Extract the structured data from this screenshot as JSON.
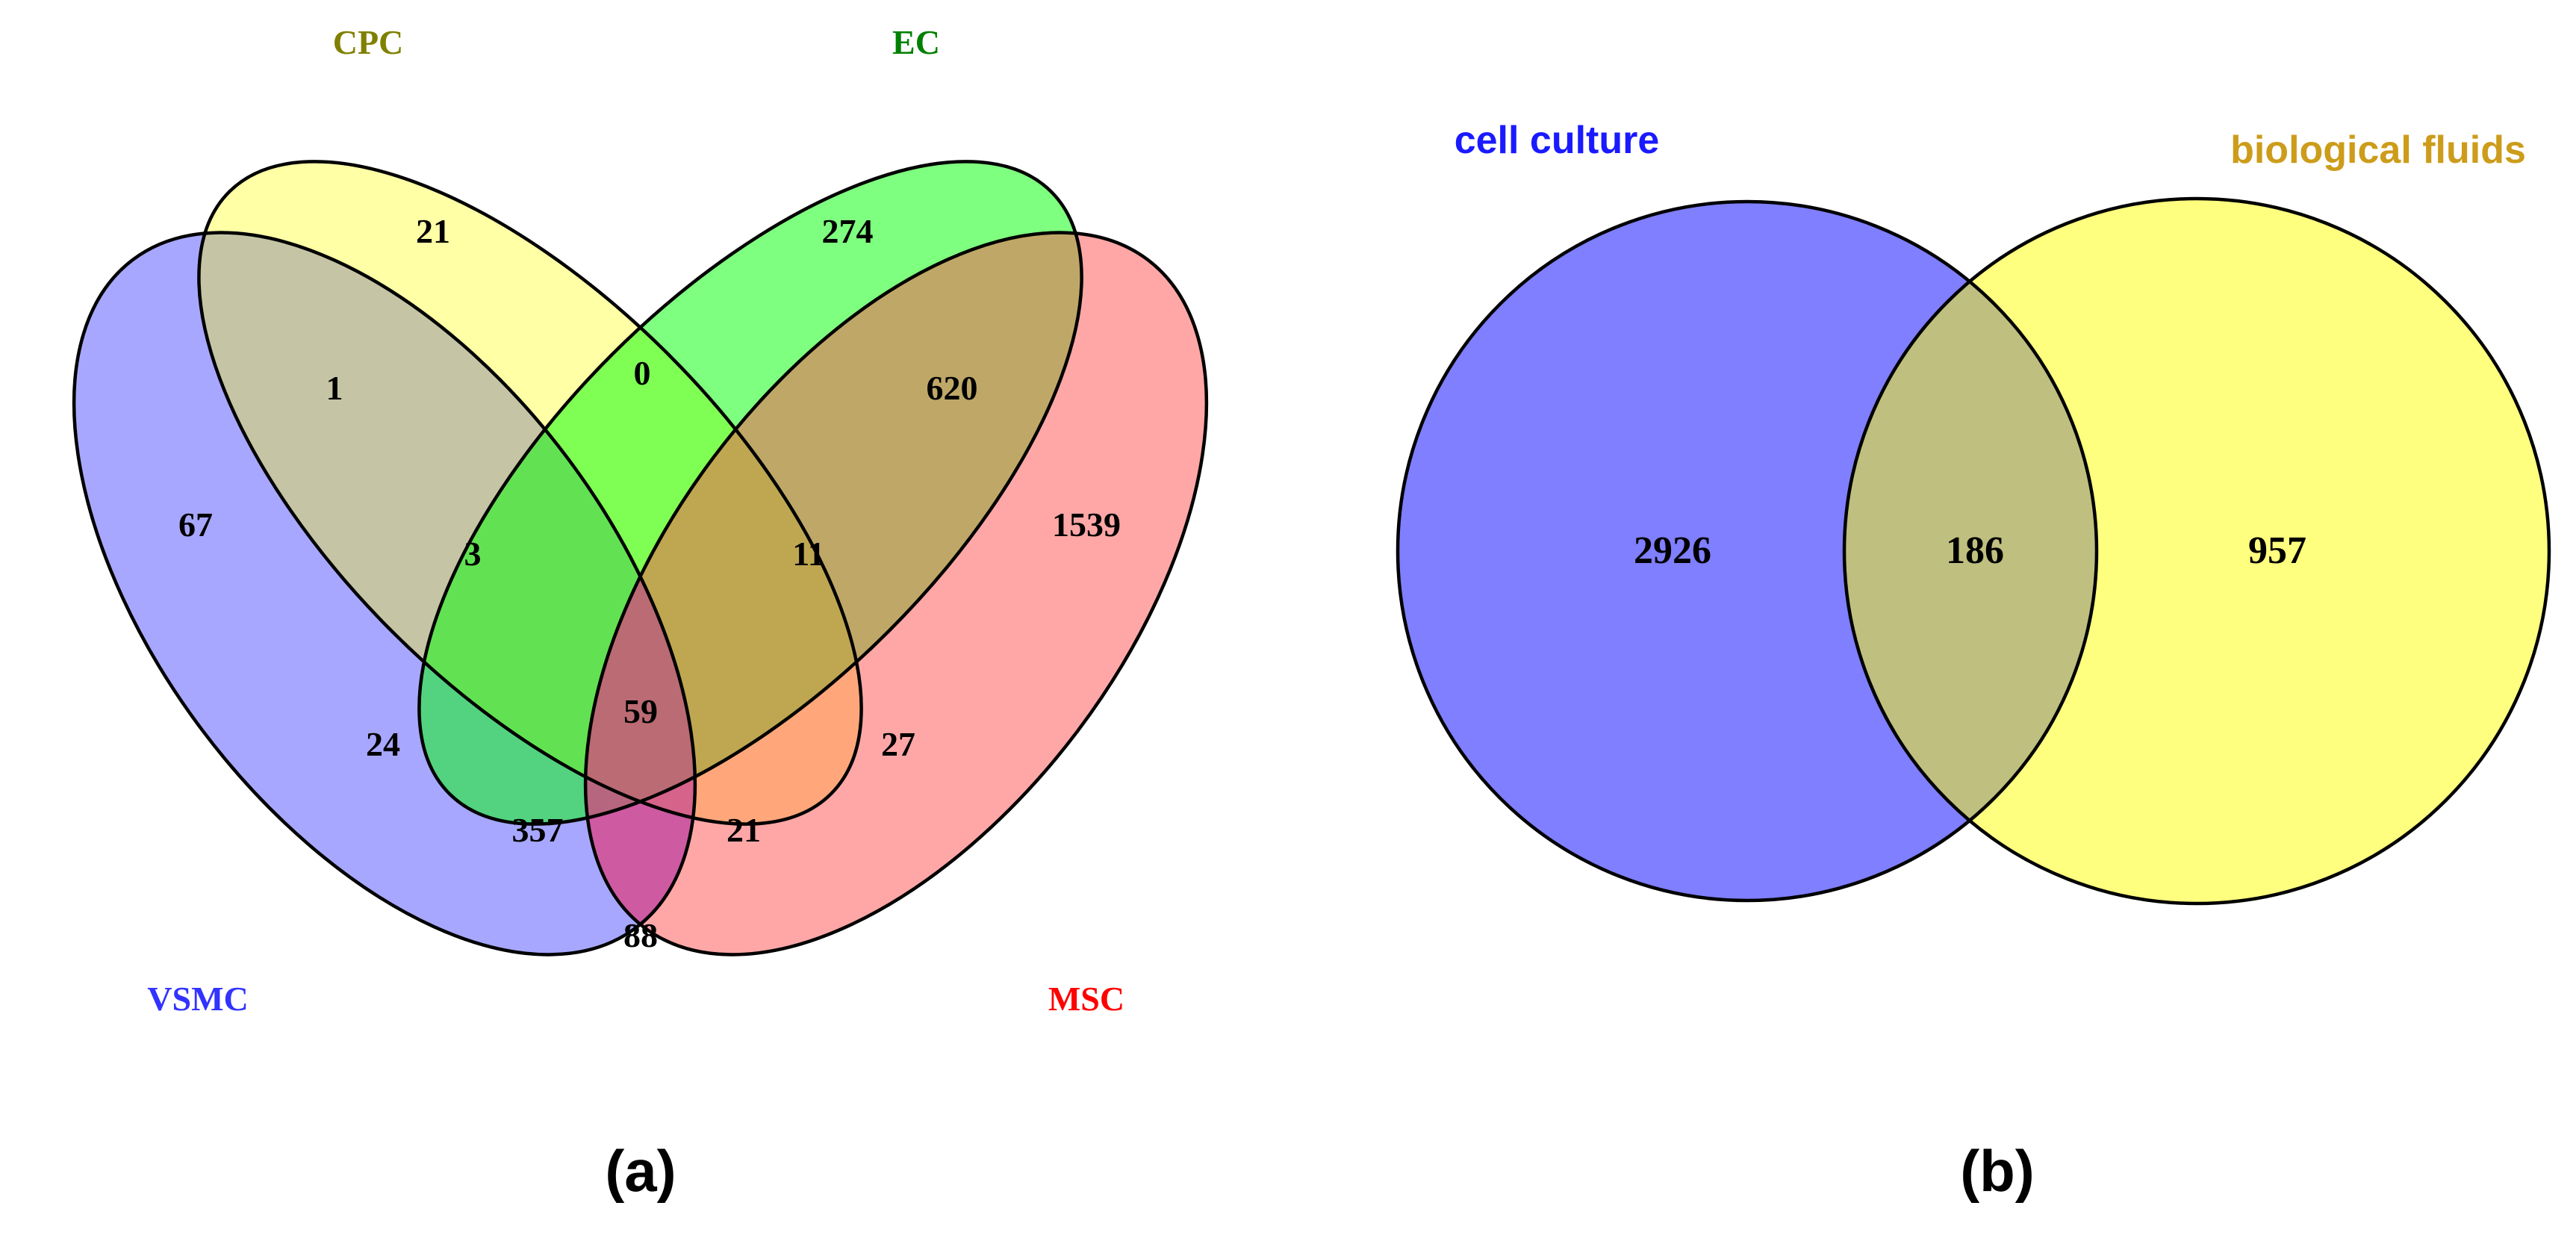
{
  "panel_a": {
    "label": "(a)",
    "sets": [
      {
        "name": "VSMC",
        "color": "#3333ff"
      },
      {
        "name": "CPC",
        "color": "#808000"
      },
      {
        "name": "EC",
        "color": "#008000"
      },
      {
        "name": "MSC",
        "color": "#ff0000"
      }
    ],
    "regions": [
      {
        "sets": [
          "VSMC"
        ],
        "count": "67"
      },
      {
        "sets": [
          "CPC"
        ],
        "count": "21"
      },
      {
        "sets": [
          "EC"
        ],
        "count": "274"
      },
      {
        "sets": [
          "MSC"
        ],
        "count": "1539"
      },
      {
        "sets": [
          "VSMC",
          "CPC"
        ],
        "count": "1"
      },
      {
        "sets": [
          "CPC",
          "EC"
        ],
        "count": "0"
      },
      {
        "sets": [
          "EC",
          "MSC"
        ],
        "count": "620"
      },
      {
        "sets": [
          "VSMC",
          "CPC",
          "EC"
        ],
        "count": "3"
      },
      {
        "sets": [
          "CPC",
          "EC",
          "MSC"
        ],
        "count": "11"
      },
      {
        "sets": [
          "VSMC",
          "CPC",
          "EC",
          "MSC"
        ],
        "count": "59"
      },
      {
        "sets": [
          "VSMC",
          "EC"
        ],
        "count": "24"
      },
      {
        "sets": [
          "CPC",
          "MSC"
        ],
        "count": "27"
      },
      {
        "sets": [
          "VSMC",
          "EC",
          "MSC"
        ],
        "count": "357"
      },
      {
        "sets": [
          "VSMC",
          "CPC",
          "MSC"
        ],
        "count": "21"
      },
      {
        "sets": [
          "VSMC",
          "MSC"
        ],
        "count": "88"
      }
    ]
  },
  "panel_b": {
    "label": "(b)",
    "sets": [
      {
        "name": "cell culture",
        "color": "#1a1aff"
      },
      {
        "name": "biological fluids",
        "color": "#cc9c1a"
      }
    ],
    "regions": [
      {
        "sets": [
          "cell culture"
        ],
        "count": "2926"
      },
      {
        "sets": [
          "cell culture",
          "biological fluids"
        ],
        "count": "186"
      },
      {
        "sets": [
          "biological fluids"
        ],
        "count": "957"
      }
    ]
  }
}
